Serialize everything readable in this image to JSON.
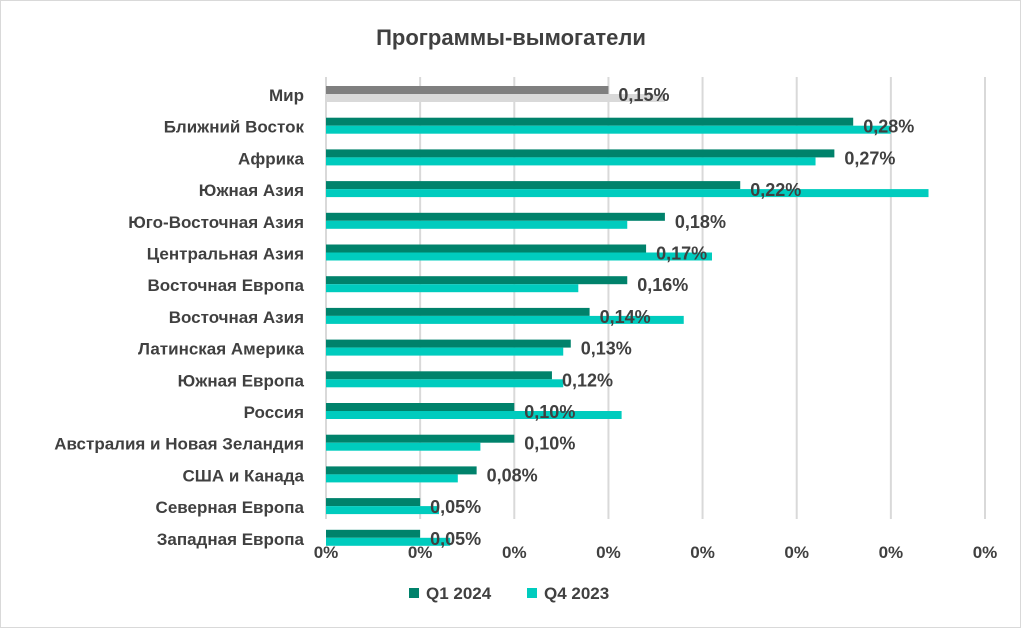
{
  "chart_data": {
    "type": "bar",
    "orientation": "horizontal",
    "title": "Программы-вымогатели",
    "categories": [
      "Мир",
      "Ближний Восток",
      "Африка",
      "Южная Азия",
      "Юго-Восточная Азия",
      "Центральная Азия",
      "Восточная Европа",
      "Восточная Азия",
      "Латинская Америка",
      "Южная Европа",
      "Россия",
      "Австралия и Новая Зеландия",
      "США и Канада",
      "Северная Европа",
      "Западная Европа"
    ],
    "series": [
      {
        "name": "Q1 2024",
        "color": "#00826B",
        "highlight_color": "#7F7F7F",
        "values": [
          0.15,
          0.28,
          0.27,
          0.22,
          0.18,
          0.17,
          0.16,
          0.14,
          0.13,
          0.12,
          0.1,
          0.1,
          0.08,
          0.05,
          0.05
        ]
      },
      {
        "name": "Q4 2023",
        "color": "#00CCBE",
        "highlight_color": "#D9D9D9",
        "values": [
          0.18,
          0.3,
          0.26,
          0.32,
          0.16,
          0.205,
          0.134,
          0.19,
          0.126,
          0.126,
          0.157,
          0.082,
          0.07,
          0.06,
          0.066
        ]
      }
    ],
    "data_labels": [
      "0,15%",
      "0,28%",
      "0,27%",
      "0,22%",
      "0,18%",
      "0,17%",
      "0,16%",
      "0,14%",
      "0,13%",
      "0,12%",
      "0,10%",
      "0,10%",
      "0,08%",
      "0,05%",
      "0,05%"
    ],
    "xlim": [
      0,
      0.35
    ],
    "x_ticks": [
      0,
      0.05,
      0.1,
      0.15,
      0.2,
      0.25,
      0.3,
      0.35
    ],
    "x_tick_labels": [
      "0%",
      "0%",
      "0%",
      "0%",
      "0%",
      "0%",
      "0%",
      "0%"
    ],
    "grid": true,
    "legend": "bottom",
    "unit": "%"
  }
}
